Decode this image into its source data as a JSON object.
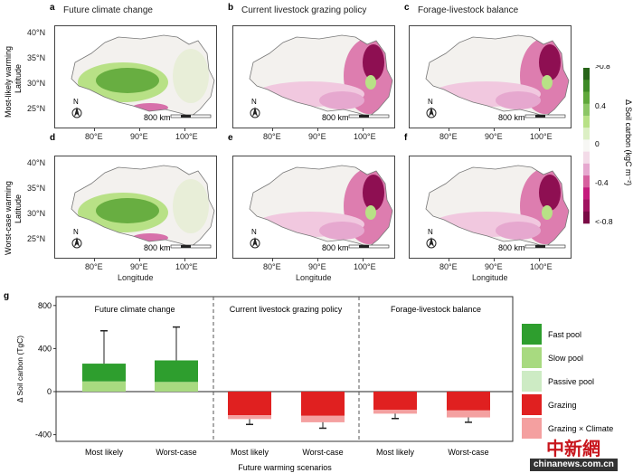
{
  "panels": {
    "a": {
      "letter": "a",
      "title": "Future climate change",
      "kind": "climate"
    },
    "b": {
      "letter": "b",
      "title": "Current livestock grazing policy",
      "kind": "grazing"
    },
    "c": {
      "letter": "c",
      "title": "Forage-livestock balance",
      "kind": "grazing"
    },
    "d": {
      "letter": "d",
      "kind": "climate"
    },
    "e": {
      "letter": "e",
      "kind": "grazing"
    },
    "f": {
      "letter": "f",
      "kind": "grazing"
    }
  },
  "rows": [
    "Most-likely warming",
    "Worst-case warming"
  ],
  "map_axes": {
    "lat_label": "Latitude",
    "lon_label": "Longitude",
    "lat_ticks": [
      "40°N",
      "35°N",
      "30°N",
      "25°N"
    ],
    "lon_ticks": [
      "80°E",
      "90°E",
      "100°E"
    ],
    "scale": "800 km",
    "north": "N"
  },
  "colorbar": {
    "title": "Δ Soil carbon (kgC m⁻²)",
    "ticks": [
      ">0.8",
      "0.4",
      "0",
      "-0.4",
      "<-0.8"
    ],
    "colors": [
      "#276419",
      "#3d8a26",
      "#5fa83a",
      "#8cc665",
      "#b8e186",
      "#dcefc4",
      "#f7f7f4",
      "#f3dbe8",
      "#e6a8cf",
      "#d7609f",
      "#c51b7d",
      "#a0125f",
      "#7a0a45"
    ]
  },
  "chart_data": {
    "type": "bar",
    "panel_letter": "g",
    "ylabel": "Δ Soil carbon (TgC)",
    "xlabel": "Future warming scenarios",
    "ylim": [
      -450,
      850
    ],
    "yticks": [
      "800",
      "400",
      "0",
      "-400"
    ],
    "ytick_values": [
      800,
      400,
      0,
      -400
    ],
    "groups": [
      "Future climate change",
      "Current livestock grazing policy",
      "Forage-livestock balance"
    ],
    "categories": [
      "Most likely",
      "Worst-case",
      "Most likely",
      "Worst-case",
      "Most likely",
      "Worst-case"
    ],
    "series": [
      {
        "name": "Fast pool",
        "color": "#2e9e2e",
        "values": [
          165,
          200,
          0,
          0,
          0,
          0
        ]
      },
      {
        "name": "Slow pool",
        "color": "#a8da80",
        "values": [
          95,
          90,
          0,
          0,
          0,
          0
        ]
      },
      {
        "name": "Passive pool",
        "color": "#cdebc4",
        "values": [
          0,
          0,
          0,
          0,
          0,
          0
        ]
      },
      {
        "name": "Grazing",
        "color": "#e02020",
        "values": [
          0,
          0,
          -220,
          -225,
          -170,
          -175
        ]
      },
      {
        "name": "Grazing × Climate",
        "color": "#f4a0a0",
        "values": [
          0,
          0,
          -35,
          -60,
          -35,
          -65
        ]
      }
    ],
    "error_bar_ends": [
      565,
      600,
      -305,
      -340,
      -250,
      -285
    ]
  },
  "watermark": {
    "cn": "中新網",
    "url": "chinanews.com.cn"
  }
}
